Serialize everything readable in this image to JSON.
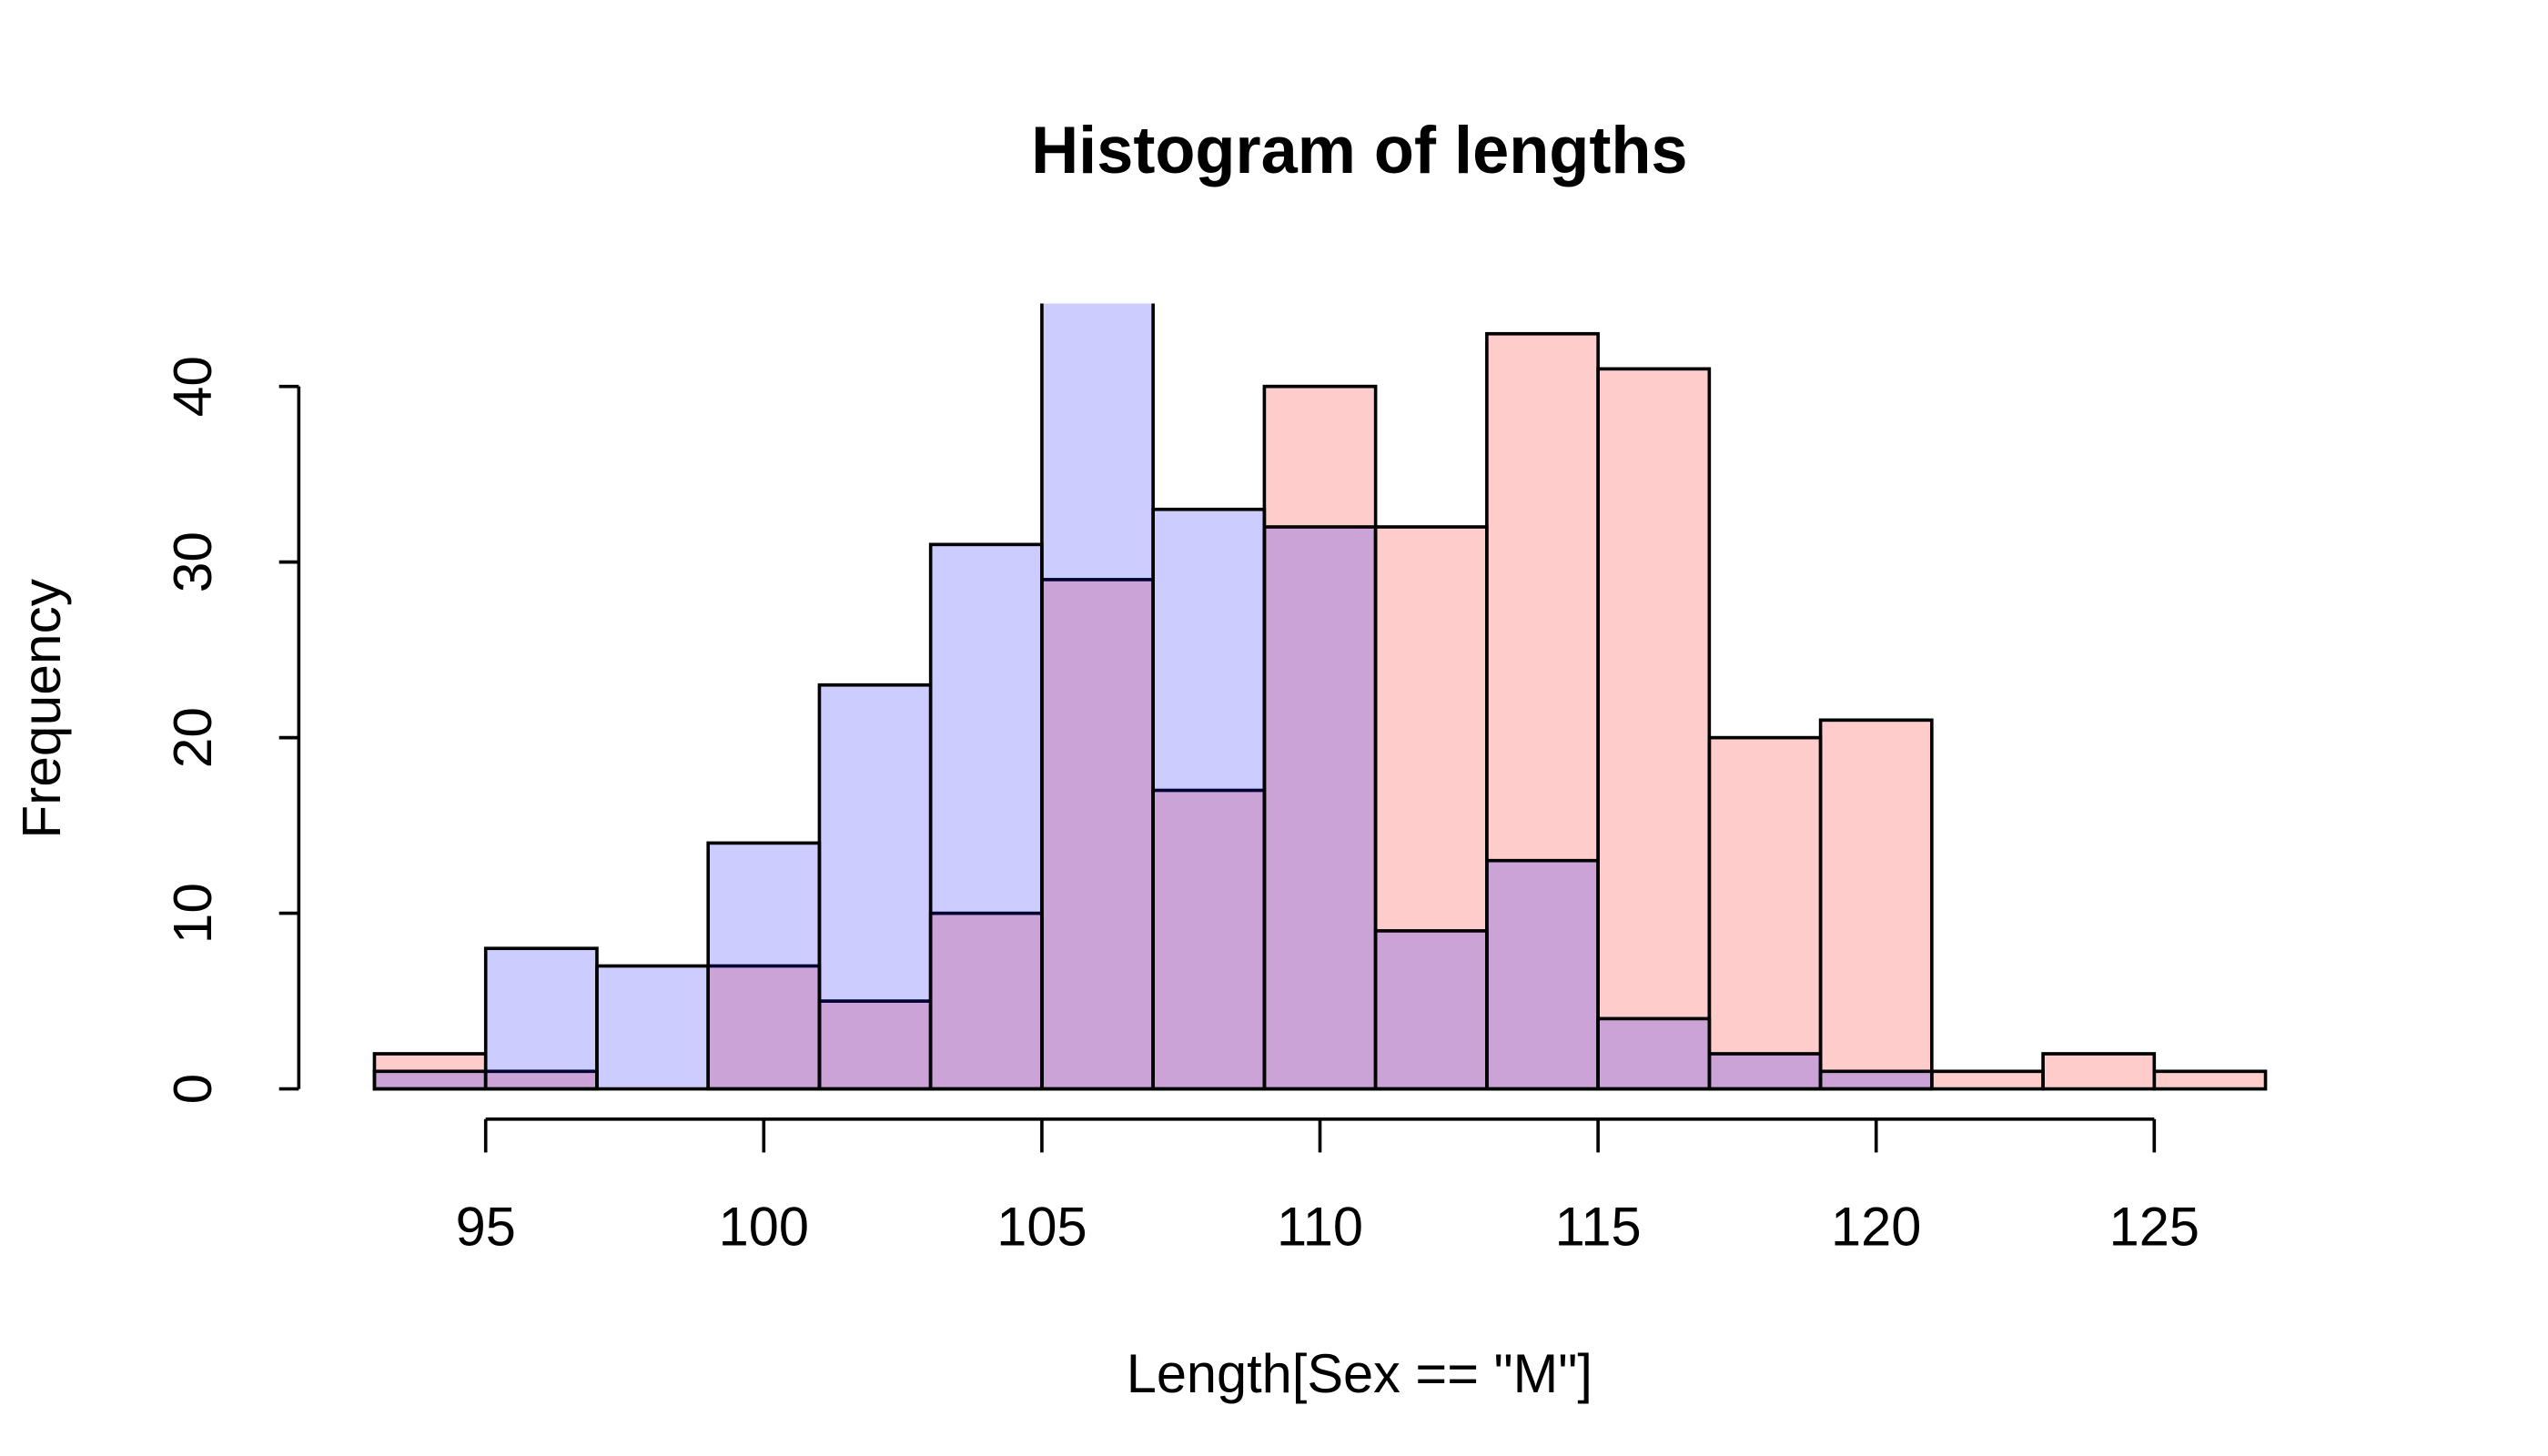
{
  "chart_data": {
    "type": "histogram",
    "title": "Histogram of lengths",
    "x_label": "Length[Sex == \"M\"]",
    "y_label": "Frequency",
    "bins": [
      93,
      95,
      97,
      99,
      101,
      103,
      105,
      107,
      109,
      111,
      113,
      115,
      117,
      119,
      121,
      123,
      125,
      127
    ],
    "series": [
      {
        "color": "rgba(255,0,0,0.2)",
        "values": [
          2,
          1,
          0,
          7,
          5,
          10,
          29,
          17,
          40,
          32,
          43,
          41,
          20,
          21,
          1,
          2,
          1
        ]
      },
      {
        "color": "rgba(0,0,255,0.2)",
        "values": [
          1,
          8,
          7,
          14,
          23,
          31,
          45,
          33,
          32,
          9,
          13,
          4,
          2,
          1,
          0,
          0,
          0
        ]
      }
    ],
    "xlim": [
      91.64,
      128.36
    ],
    "ylim": [
      -1.72,
      44.72
    ],
    "xticks": [
      95,
      100,
      105,
      110,
      115,
      120,
      125
    ],
    "yticks": [
      0,
      10,
      20,
      30,
      40
    ]
  }
}
